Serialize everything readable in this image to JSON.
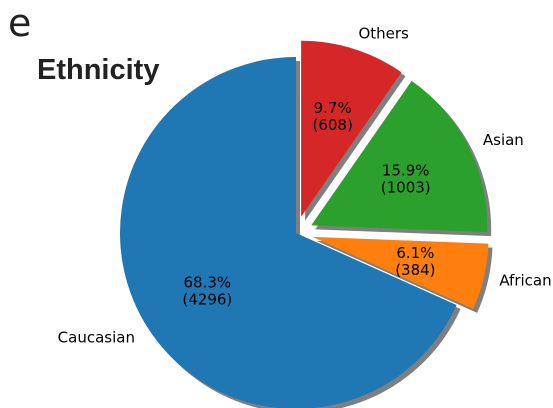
{
  "panel_letter": "e",
  "chart_data": {
    "type": "pie",
    "title": "Ethnicity",
    "slices": [
      {
        "label": "Caucasian",
        "percent": "68.3%",
        "count": "(4296)",
        "value": 4296,
        "color": "#1f77b4",
        "exploded": false
      },
      {
        "label": "African",
        "percent": "6.1%",
        "count": "(384)",
        "value": 384,
        "color": "#ff7f0e",
        "exploded": true
      },
      {
        "label": "Asian",
        "percent": "15.9%",
        "count": "(1003)",
        "value": 1003,
        "color": "#2ca02c",
        "exploded": true
      },
      {
        "label": "Others",
        "percent": "9.7%",
        "count": "(608)",
        "value": 608,
        "color": "#d62728",
        "exploded": true
      }
    ],
    "start_angle_deg": 90,
    "direction": "counterclockwise",
    "shadow": true,
    "legend": "none"
  }
}
